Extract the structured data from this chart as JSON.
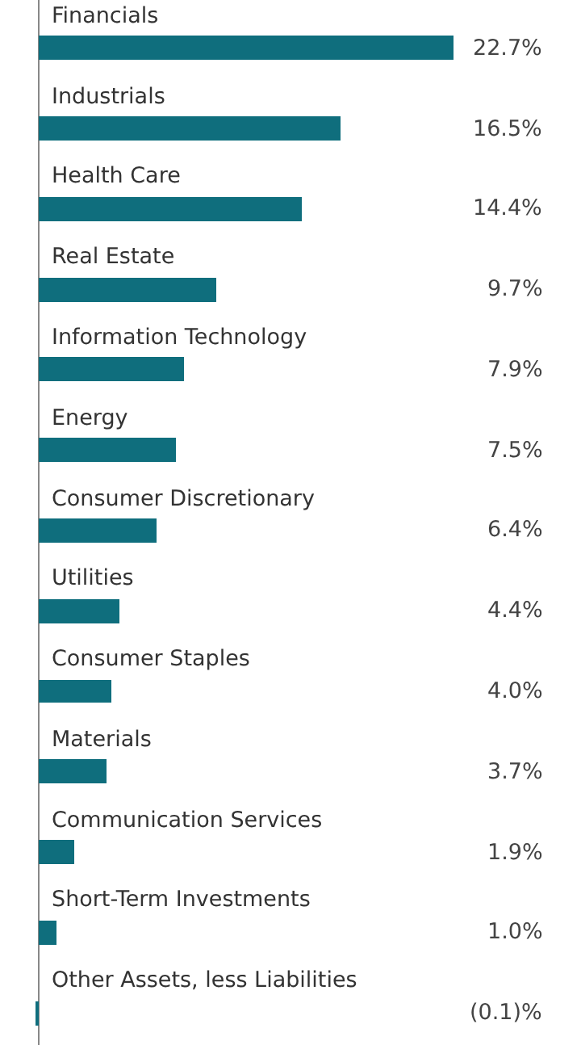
{
  "chart_data": {
    "type": "bar",
    "orientation": "horizontal",
    "categories": [
      "Financials",
      "Industrials",
      "Health Care",
      "Real Estate",
      "Information Technology",
      "Energy",
      "Consumer Discretionary",
      "Utilities",
      "Consumer Staples",
      "Materials",
      "Communication Services",
      "Short-Term Investments",
      "Other Assets, less Liabilities"
    ],
    "values": [
      22.7,
      16.5,
      14.4,
      9.7,
      7.9,
      7.5,
      6.4,
      4.4,
      4.0,
      3.7,
      1.9,
      1.0,
      -0.1
    ],
    "value_labels": [
      "22.7%",
      "16.5%",
      "14.4%",
      "9.7%",
      "7.9%",
      "7.5%",
      "6.4%",
      "4.4%",
      "4.0%",
      "3.7%",
      "1.9%",
      "1.0%",
      "(0.1)%"
    ],
    "color": "#0f6e7d"
  }
}
